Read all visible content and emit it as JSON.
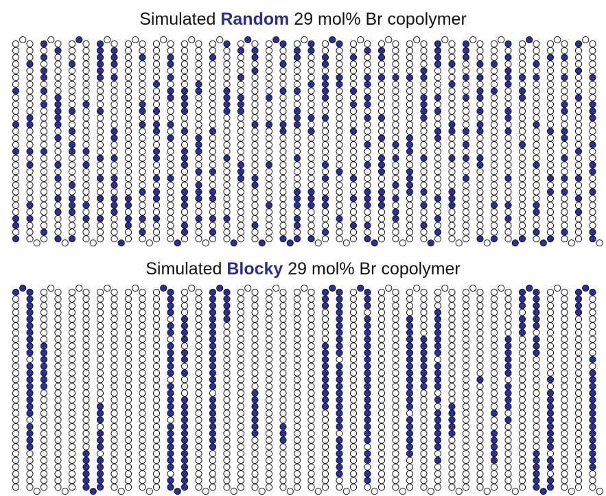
{
  "panels": [
    {
      "title": {
        "prefix": "Simulated",
        "emphasis": "Random",
        "suffix": "29 mol% Br copolymer"
      }
    },
    {
      "title": {
        "prefix": "Simulated",
        "emphasis": "Blocky",
        "suffix": "29 mol% Br copolymer"
      }
    }
  ]
}
